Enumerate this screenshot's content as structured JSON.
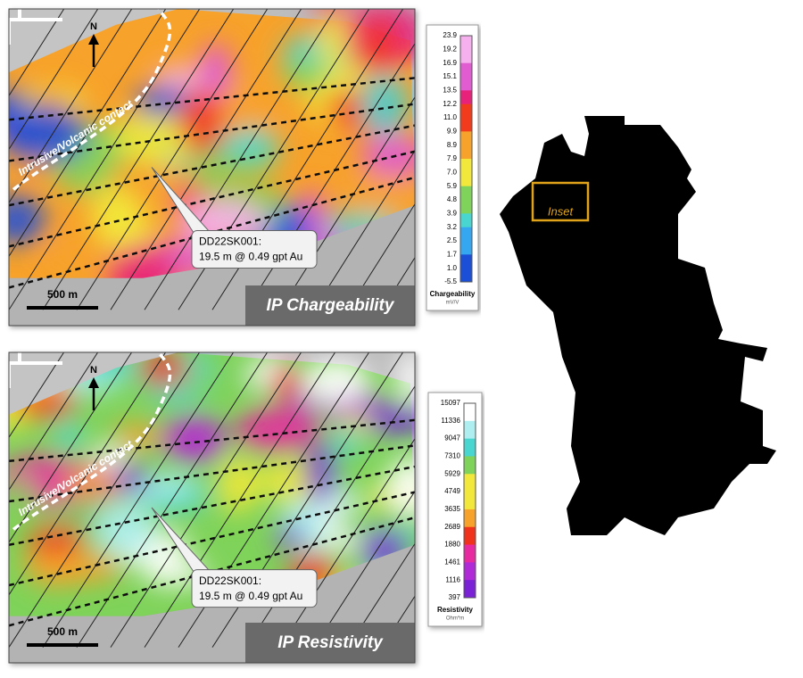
{
  "panels": [
    {
      "title": "IP Chargeability",
      "contact_label": "Intrusive/Volcanic contact",
      "north": "N",
      "scale_bar": "500 m",
      "callout": [
        "DD22SK001:",
        "19.5 m @ 0.49 gpt Au"
      ],
      "legend": {
        "title": "Chargeability",
        "unit": "mV/V",
        "labels": [
          "23.9",
          "19.2",
          "16.9",
          "15.1",
          "13.5",
          "12.2",
          "11.0",
          "9.9",
          "8.9",
          "7.9",
          "7.0",
          "5.9",
          "4.8",
          "3.9",
          "3.2",
          "2.5",
          "1.7",
          "1.0",
          "-5.5"
        ]
      }
    },
    {
      "title": "IP Resistivity",
      "contact_label": "Intrusive/Volcanic contact",
      "north": "N",
      "scale_bar": "500 m",
      "callout": [
        "DD22SK001:",
        "19.5 m @ 0.49 gpt Au"
      ],
      "legend": {
        "title": "Resistivity",
        "unit": "Ohm*m",
        "labels": [
          "15097",
          "11336",
          "9047",
          "7310",
          "5929",
          "4749",
          "3635",
          "2689",
          "1880",
          "1461",
          "1116",
          "397"
        ]
      }
    }
  ],
  "locator": {
    "inset_label": "Inset"
  }
}
